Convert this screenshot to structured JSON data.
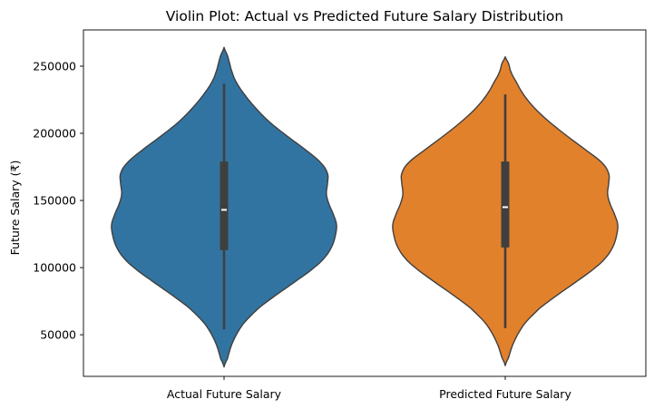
{
  "chart_data": {
    "type": "violin",
    "title": "Violin Plot: Actual vs Predicted Future Salary Distribution",
    "xlabel": "",
    "ylabel": "Future Salary (₹)",
    "ylim": [
      19000,
      277000
    ],
    "yticks": [
      50000,
      100000,
      150000,
      200000,
      250000
    ],
    "categories": [
      "Actual Future Salary",
      "Predicted Future Salary"
    ],
    "grid": false,
    "series": [
      {
        "color": "#3274a1",
        "min": 54000,
        "q1": 113000,
        "median": 143000,
        "q3": 179000,
        "max": 237000,
        "density_extent": [
          26000,
          264000
        ],
        "density_profile": [
          [
            26000,
            0.0
          ],
          [
            32000,
            0.03
          ],
          [
            45000,
            0.08
          ],
          [
            58000,
            0.17
          ],
          [
            70000,
            0.31
          ],
          [
            80000,
            0.47
          ],
          [
            90000,
            0.64
          ],
          [
            100000,
            0.8
          ],
          [
            108000,
            0.9
          ],
          [
            116000,
            0.96
          ],
          [
            124000,
            0.99
          ],
          [
            132000,
            1.0
          ],
          [
            140000,
            0.97
          ],
          [
            148000,
            0.93
          ],
          [
            155000,
            0.91
          ],
          [
            163000,
            0.92
          ],
          [
            170000,
            0.92
          ],
          [
            178000,
            0.86
          ],
          [
            188000,
            0.72
          ],
          [
            198000,
            0.56
          ],
          [
            208000,
            0.41
          ],
          [
            218000,
            0.29
          ],
          [
            228000,
            0.19
          ],
          [
            238000,
            0.11
          ],
          [
            246000,
            0.07
          ],
          [
            252000,
            0.05
          ],
          [
            258000,
            0.03
          ],
          [
            264000,
            0.0
          ]
        ]
      },
      {
        "color": "#e1812c",
        "min": 55000,
        "q1": 115000,
        "median": 145000,
        "q3": 179000,
        "max": 229000,
        "density_extent": [
          27000,
          257000
        ],
        "density_profile": [
          [
            27000,
            0.0
          ],
          [
            33000,
            0.03
          ],
          [
            45000,
            0.08
          ],
          [
            58000,
            0.17
          ],
          [
            70000,
            0.31
          ],
          [
            80000,
            0.47
          ],
          [
            90000,
            0.64
          ],
          [
            100000,
            0.8
          ],
          [
            108000,
            0.9
          ],
          [
            116000,
            0.96
          ],
          [
            124000,
            0.99
          ],
          [
            132000,
            1.0
          ],
          [
            140000,
            0.97
          ],
          [
            148000,
            0.93
          ],
          [
            155000,
            0.91
          ],
          [
            163000,
            0.92
          ],
          [
            170000,
            0.92
          ],
          [
            178000,
            0.86
          ],
          [
            188000,
            0.71
          ],
          [
            198000,
            0.55
          ],
          [
            208000,
            0.4
          ],
          [
            218000,
            0.27
          ],
          [
            228000,
            0.17
          ],
          [
            238000,
            0.1
          ],
          [
            246000,
            0.05
          ],
          [
            252000,
            0.03
          ],
          [
            257000,
            0.0
          ]
        ]
      }
    ]
  }
}
